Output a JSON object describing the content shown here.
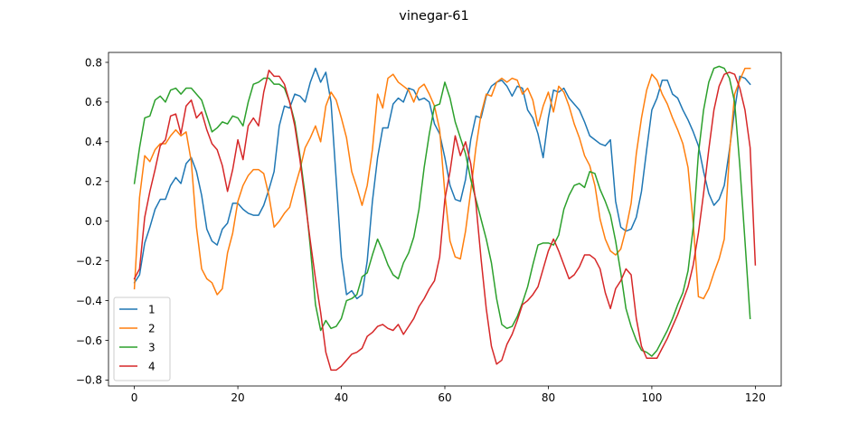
{
  "chart_data": {
    "type": "line",
    "title": "vinegar-61",
    "xlabel": "",
    "ylabel": "",
    "xlim": [
      -5,
      125
    ],
    "ylim": [
      -0.83,
      0.85
    ],
    "xticks": [
      0,
      20,
      40,
      60,
      80,
      100,
      120
    ],
    "yticks": [
      -0.8,
      -0.6,
      -0.4,
      -0.2,
      0.0,
      0.2,
      0.4,
      0.6,
      0.8
    ],
    "ytick_labels": [
      "−0.8",
      "−0.6",
      "−0.4",
      "−0.2",
      "0.0",
      "0.2",
      "0.4",
      "0.6",
      "0.8"
    ],
    "grid": false,
    "legend_position": "lower-left",
    "series": [
      {
        "name": "1",
        "color": "#1f77b4",
        "values": [
          -0.31,
          -0.27,
          -0.11,
          -0.03,
          0.06,
          0.11,
          0.11,
          0.18,
          0.22,
          0.19,
          0.29,
          0.32,
          0.25,
          0.13,
          -0.04,
          -0.1,
          -0.12,
          -0.04,
          -0.01,
          0.09,
          0.09,
          0.06,
          0.04,
          0.03,
          0.03,
          0.08,
          0.16,
          0.25,
          0.48,
          0.58,
          0.57,
          0.64,
          0.63,
          0.6,
          0.7,
          0.77,
          0.7,
          0.75,
          0.6,
          0.21,
          -0.18,
          -0.37,
          -0.35,
          -0.39,
          -0.37,
          -0.2,
          0.1,
          0.32,
          0.47,
          0.47,
          0.59,
          0.62,
          0.6,
          0.67,
          0.66,
          0.61,
          0.62,
          0.6,
          0.49,
          0.44,
          0.32,
          0.18,
          0.11,
          0.1,
          0.21,
          0.41,
          0.53,
          0.52,
          0.63,
          0.68,
          0.7,
          0.71,
          0.68,
          0.63,
          0.68,
          0.67,
          0.56,
          0.52,
          0.44,
          0.32,
          0.52,
          0.66,
          0.65,
          0.67,
          0.62,
          0.59,
          0.56,
          0.5,
          0.43,
          0.41,
          0.39,
          0.38,
          0.41,
          0.1,
          -0.03,
          -0.05,
          -0.04,
          0.02,
          0.15,
          0.36,
          0.56,
          0.62,
          0.71,
          0.71,
          0.64,
          0.62,
          0.56,
          0.51,
          0.45,
          0.38,
          0.25,
          0.14,
          0.08,
          0.11,
          0.18,
          0.36,
          0.56,
          0.73,
          0.72,
          0.69
        ]
      },
      {
        "name": "2",
        "color": "#ff7f0e",
        "values": [
          -0.34,
          0.12,
          0.33,
          0.3,
          0.36,
          0.39,
          0.39,
          0.43,
          0.46,
          0.43,
          0.45,
          0.3,
          -0.03,
          -0.24,
          -0.29,
          -0.31,
          -0.37,
          -0.34,
          -0.16,
          -0.06,
          0.1,
          0.18,
          0.23,
          0.26,
          0.26,
          0.24,
          0.13,
          -0.03,
          0.0,
          0.04,
          0.07,
          0.17,
          0.26,
          0.37,
          0.42,
          0.48,
          0.4,
          0.58,
          0.65,
          0.61,
          0.52,
          0.42,
          0.25,
          0.17,
          0.08,
          0.18,
          0.36,
          0.64,
          0.57,
          0.72,
          0.74,
          0.7,
          0.68,
          0.66,
          0.6,
          0.67,
          0.69,
          0.64,
          0.58,
          0.46,
          0.14,
          -0.1,
          -0.18,
          -0.19,
          -0.05,
          0.15,
          0.37,
          0.54,
          0.64,
          0.63,
          0.7,
          0.72,
          0.7,
          0.72,
          0.71,
          0.64,
          0.67,
          0.61,
          0.48,
          0.58,
          0.65,
          0.55,
          0.68,
          0.65,
          0.58,
          0.49,
          0.42,
          0.33,
          0.28,
          0.18,
          0.01,
          -0.09,
          -0.15,
          -0.17,
          -0.14,
          -0.04,
          0.09,
          0.34,
          0.52,
          0.66,
          0.74,
          0.71,
          0.64,
          0.59,
          0.52,
          0.46,
          0.39,
          0.27,
          -0.01,
          -0.38,
          -0.39,
          -0.34,
          -0.26,
          -0.19,
          -0.09,
          0.34,
          0.64,
          0.71,
          0.77,
          0.77
        ]
      },
      {
        "name": "3",
        "color": "#2ca02c",
        "values": [
          0.19,
          0.37,
          0.52,
          0.53,
          0.61,
          0.63,
          0.6,
          0.66,
          0.67,
          0.64,
          0.67,
          0.67,
          0.64,
          0.61,
          0.53,
          0.45,
          0.47,
          0.5,
          0.49,
          0.53,
          0.52,
          0.48,
          0.6,
          0.69,
          0.7,
          0.72,
          0.72,
          0.69,
          0.69,
          0.67,
          0.6,
          0.5,
          0.33,
          0.13,
          -0.13,
          -0.42,
          -0.55,
          -0.5,
          -0.54,
          -0.53,
          -0.49,
          -0.4,
          -0.39,
          -0.37,
          -0.28,
          -0.26,
          -0.17,
          -0.09,
          -0.15,
          -0.22,
          -0.27,
          -0.29,
          -0.21,
          -0.16,
          -0.08,
          0.06,
          0.27,
          0.44,
          0.58,
          0.59,
          0.7,
          0.62,
          0.5,
          0.42,
          0.34,
          0.21,
          0.11,
          0.01,
          -0.09,
          -0.21,
          -0.39,
          -0.52,
          -0.54,
          -0.53,
          -0.48,
          -0.41,
          -0.33,
          -0.22,
          -0.12,
          -0.11,
          -0.11,
          -0.12,
          -0.07,
          0.06,
          0.13,
          0.18,
          0.19,
          0.17,
          0.25,
          0.24,
          0.16,
          0.1,
          0.03,
          -0.1,
          -0.26,
          -0.44,
          -0.53,
          -0.6,
          -0.65,
          -0.66,
          -0.68,
          -0.65,
          -0.6,
          -0.55,
          -0.49,
          -0.42,
          -0.36,
          -0.25,
          -0.03,
          0.34,
          0.56,
          0.7,
          0.77,
          0.78,
          0.77,
          0.72,
          0.6,
          0.28,
          -0.1,
          -0.49
        ]
      },
      {
        "name": "4",
        "color": "#d62728",
        "values": [
          -0.29,
          -0.24,
          0.02,
          0.15,
          0.26,
          0.38,
          0.41,
          0.53,
          0.54,
          0.44,
          0.58,
          0.61,
          0.52,
          0.55,
          0.46,
          0.39,
          0.36,
          0.28,
          0.15,
          0.26,
          0.41,
          0.31,
          0.48,
          0.52,
          0.48,
          0.65,
          0.76,
          0.73,
          0.73,
          0.69,
          0.6,
          0.48,
          0.31,
          0.1,
          -0.1,
          -0.29,
          -0.46,
          -0.66,
          -0.75,
          -0.75,
          -0.73,
          -0.7,
          -0.67,
          -0.66,
          -0.64,
          -0.58,
          -0.56,
          -0.53,
          -0.52,
          -0.54,
          -0.55,
          -0.52,
          -0.57,
          -0.53,
          -0.49,
          -0.43,
          -0.39,
          -0.34,
          -0.3,
          -0.18,
          0.11,
          0.25,
          0.43,
          0.33,
          0.4,
          0.29,
          0.09,
          -0.19,
          -0.44,
          -0.63,
          -0.72,
          -0.7,
          -0.62,
          -0.57,
          -0.5,
          -0.42,
          -0.4,
          -0.37,
          -0.33,
          -0.24,
          -0.15,
          -0.09,
          -0.15,
          -0.22,
          -0.29,
          -0.27,
          -0.23,
          -0.17,
          -0.17,
          -0.19,
          -0.24,
          -0.36,
          -0.44,
          -0.34,
          -0.3,
          -0.24,
          -0.27,
          -0.49,
          -0.63,
          -0.69,
          -0.69,
          -0.69,
          -0.64,
          -0.59,
          -0.53,
          -0.47,
          -0.4,
          -0.33,
          -0.22,
          -0.06,
          0.14,
          0.36,
          0.56,
          0.68,
          0.74,
          0.75,
          0.74,
          0.67,
          0.56,
          0.37,
          -0.22
        ]
      }
    ]
  }
}
